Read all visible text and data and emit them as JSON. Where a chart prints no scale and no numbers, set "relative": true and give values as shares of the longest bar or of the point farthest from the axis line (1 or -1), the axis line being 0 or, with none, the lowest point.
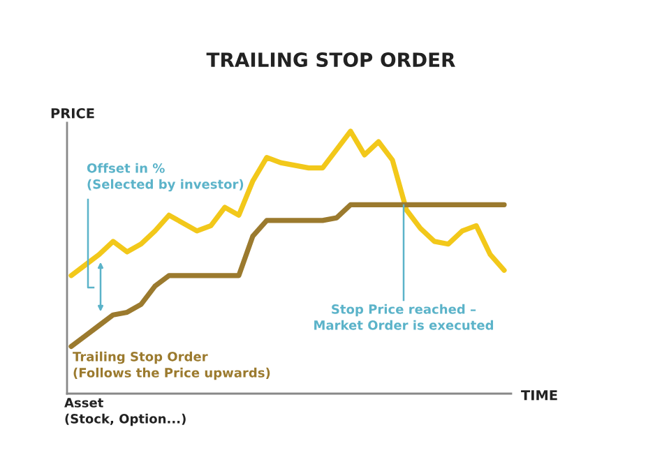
{
  "chart_data": {
    "type": "line",
    "title": "TRAILING STOP ORDER",
    "xlabel": "TIME",
    "ylabel": "PRICE",
    "relative": true,
    "marker": "none",
    "line_style": "solid",
    "categories": [
      null,
      null,
      null,
      null,
      null,
      null,
      null,
      null,
      null,
      null,
      null,
      null,
      null,
      null,
      null,
      null,
      null,
      null,
      null,
      null,
      null,
      null,
      null,
      null,
      null,
      null,
      null,
      null,
      null,
      null,
      null,
      null
    ],
    "series": [
      {
        "color": "#f2c81a",
        "values": [
          0.45,
          0.49,
          0.53,
          0.58,
          0.54,
          0.57,
          0.62,
          0.68,
          0.65,
          0.62,
          0.64,
          0.71,
          0.68,
          0.81,
          0.9,
          0.88,
          0.87,
          0.86,
          0.86,
          0.93,
          1.0,
          0.91,
          0.96,
          0.89,
          0.7,
          0.63,
          0.58,
          0.57,
          0.62,
          0.64,
          0.53,
          0.47
        ]
      },
      {
        "color": "#9b7a2e",
        "values": [
          0.18,
          0.22,
          0.26,
          0.3,
          0.31,
          0.34,
          0.41,
          0.45,
          0.45,
          0.45,
          0.45,
          0.45,
          0.45,
          0.6,
          0.66,
          0.66,
          0.66,
          0.66,
          0.66,
          0.67,
          0.72,
          0.72,
          0.72,
          0.72,
          0.72,
          0.72,
          0.72,
          0.72,
          0.72,
          0.72,
          0.72,
          0.72
        ]
      }
    ],
    "annotations": [
      "Offset in %\n(Selected by investor)",
      "Stop Price reached –\nMarket Order is executed",
      "Trailing Stop Order\n(Follows the Price upwards)",
      "Asset\n(Stock, Option...)"
    ]
  }
}
